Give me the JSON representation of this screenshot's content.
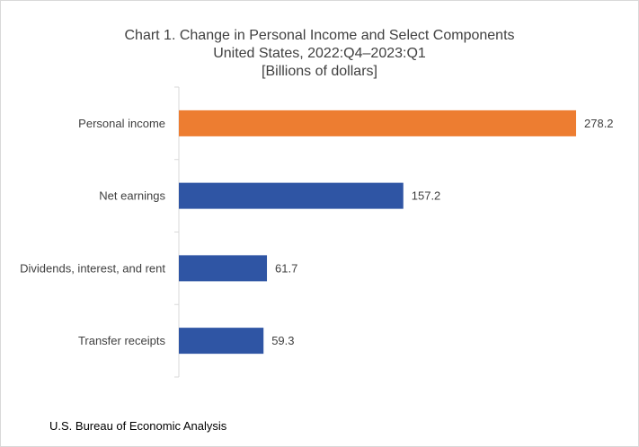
{
  "chart_data": {
    "type": "bar",
    "orientation": "horizontal",
    "title": "Chart 1. Change in Personal Income and Select Components",
    "subtitle": "United States, 2022:Q4–2023:Q1",
    "unit_label": "[Billions of dollars]",
    "categories": [
      "Personal income",
      "Net earnings",
      "Dividends, interest, and rent",
      "Transfer receipts"
    ],
    "values": [
      278.2,
      157.2,
      61.7,
      59.3
    ],
    "value_labels": [
      "278.2",
      "157.2",
      "61.7",
      "59.3"
    ],
    "colors": [
      "#ED7D31",
      "#2F55A4",
      "#2F55A4",
      "#2F55A4"
    ],
    "xlim": [
      0,
      278.2
    ],
    "grid": false,
    "legend": "none"
  },
  "source": "U.S. Bureau of Economic Analysis"
}
